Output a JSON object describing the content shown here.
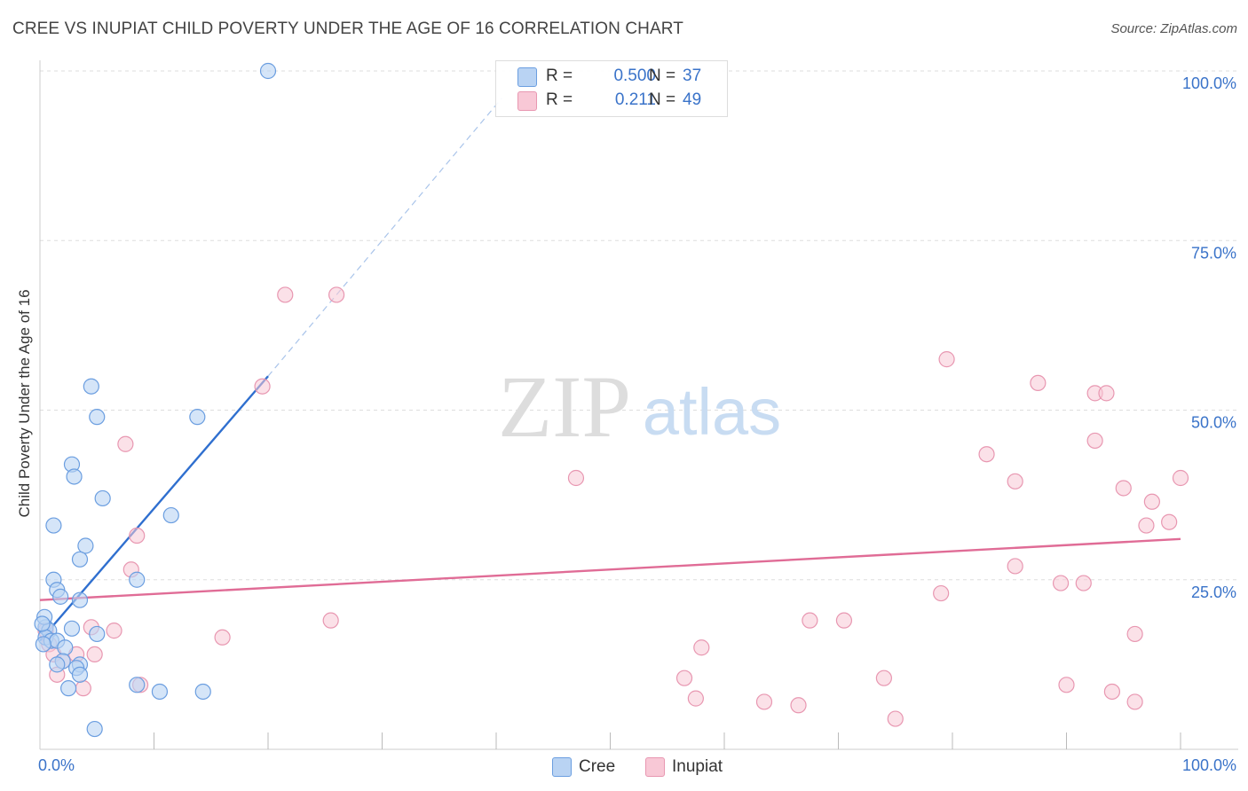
{
  "title": "CREE VS INUPIAT CHILD POVERTY UNDER THE AGE OF 16 CORRELATION CHART",
  "source": "Source: ZipAtlas.com",
  "watermark": {
    "zip": "ZIP",
    "atlas": "atlas"
  },
  "legend": {
    "cree": {
      "r_label": "R =",
      "r_value": "0.500",
      "n_label": "N =",
      "n_value": "37"
    },
    "inupiat": {
      "r_label": "R =",
      "r_value": "0.211",
      "n_label": "N =",
      "n_value": "49"
    }
  },
  "colors": {
    "cree_fill": "#b9d3f3",
    "cree_stroke": "#6b9ee0",
    "cree_line": "#2f6fcf",
    "inupiat_fill": "#f8c8d6",
    "inupiat_stroke": "#e897b1",
    "inupiat_line": "#e06c96",
    "grid": "#dddddd",
    "tick_text": "#3a73c9"
  },
  "chart_data": {
    "type": "scatter",
    "title": "CREE VS INUPIAT CHILD POVERTY UNDER THE AGE OF 16 CORRELATION CHART",
    "xlabel": "",
    "ylabel": "Child Poverty Under the Age of 16",
    "xlim": [
      0,
      100
    ],
    "ylim": [
      0,
      100
    ],
    "x_tick_labels": [
      "0.0%",
      "100.0%"
    ],
    "y_ticks": [
      25,
      50,
      75,
      100
    ],
    "y_tick_labels": [
      "25.0%",
      "50.0%",
      "75.0%",
      "100.0%"
    ],
    "grid": true,
    "legend_position": "top-center",
    "series": [
      {
        "name": "Cree",
        "r": 0.5,
        "n": 37,
        "points": [
          [
            20,
            100
          ],
          [
            4.5,
            53.5
          ],
          [
            5,
            49
          ],
          [
            13.8,
            49
          ],
          [
            2.8,
            42
          ],
          [
            3,
            40.2
          ],
          [
            5.5,
            37
          ],
          [
            1.2,
            33
          ],
          [
            11.5,
            34.5
          ],
          [
            4,
            30
          ],
          [
            3.5,
            28
          ],
          [
            1.2,
            25
          ],
          [
            8.5,
            25
          ],
          [
            1.5,
            23.5
          ],
          [
            1.8,
            22.5
          ],
          [
            3.5,
            22
          ],
          [
            0.5,
            18
          ],
          [
            0.8,
            17.5
          ],
          [
            2.8,
            17.8
          ],
          [
            5,
            17
          ],
          [
            0.5,
            16.5
          ],
          [
            1,
            16
          ],
          [
            1.5,
            16
          ],
          [
            0.3,
            15.5
          ],
          [
            2.2,
            15
          ],
          [
            2,
            13
          ],
          [
            1.5,
            12.5
          ],
          [
            3.5,
            12.5
          ],
          [
            3.2,
            12
          ],
          [
            3.5,
            11
          ],
          [
            8.5,
            9.5
          ],
          [
            2.5,
            9
          ],
          [
            10.5,
            8.5
          ],
          [
            14.3,
            8.5
          ],
          [
            4.8,
            3
          ],
          [
            0.4,
            19.5
          ],
          [
            0.2,
            18.5
          ]
        ],
        "trend_solid": {
          "x": [
            0,
            20
          ],
          "y": [
            16,
            55
          ]
        },
        "trend_dashed": {
          "x": [
            20,
            40.5
          ],
          "y": [
            55,
            96
          ]
        }
      },
      {
        "name": "Inupiat",
        "r": 0.211,
        "n": 49,
        "points": [
          [
            21.5,
            67
          ],
          [
            26,
            67
          ],
          [
            19.5,
            53.5
          ],
          [
            7.5,
            45
          ],
          [
            47,
            40
          ],
          [
            8.5,
            31.5
          ],
          [
            8,
            26.5
          ],
          [
            25.5,
            19
          ],
          [
            4.5,
            18
          ],
          [
            0.5,
            17.5
          ],
          [
            6.5,
            17.5
          ],
          [
            16,
            16.5
          ],
          [
            0.8,
            15.5
          ],
          [
            1.2,
            14
          ],
          [
            3.2,
            14
          ],
          [
            4.8,
            14
          ],
          [
            2,
            13
          ],
          [
            1.5,
            11
          ],
          [
            3.8,
            9
          ],
          [
            8.8,
            9.5
          ],
          [
            58,
            15
          ],
          [
            56.5,
            10.5
          ],
          [
            63.5,
            7
          ],
          [
            66.5,
            6.5
          ],
          [
            57.5,
            7.5
          ],
          [
            87.5,
            54
          ],
          [
            79.5,
            57.5
          ],
          [
            92.5,
            52.5
          ],
          [
            93.5,
            52.5
          ],
          [
            92.5,
            45.5
          ],
          [
            83,
            43.5
          ],
          [
            85.5,
            39.5
          ],
          [
            95,
            38.5
          ],
          [
            100,
            40
          ],
          [
            97.5,
            36.5
          ],
          [
            97,
            33
          ],
          [
            99,
            33.5
          ],
          [
            85.5,
            27
          ],
          [
            89.5,
            24.5
          ],
          [
            91.5,
            24.5
          ],
          [
            79,
            23
          ],
          [
            67.5,
            19
          ],
          [
            70.5,
            19
          ],
          [
            96,
            17
          ],
          [
            74,
            10.5
          ],
          [
            90,
            9.5
          ],
          [
            94,
            8.5
          ],
          [
            96,
            7
          ],
          [
            75,
            4.5
          ]
        ],
        "trend_solid": {
          "x": [
            0,
            100
          ],
          "y": [
            22,
            31
          ]
        }
      }
    ]
  },
  "bottom_legend": {
    "cree": "Cree",
    "inupiat": "Inupiat"
  }
}
